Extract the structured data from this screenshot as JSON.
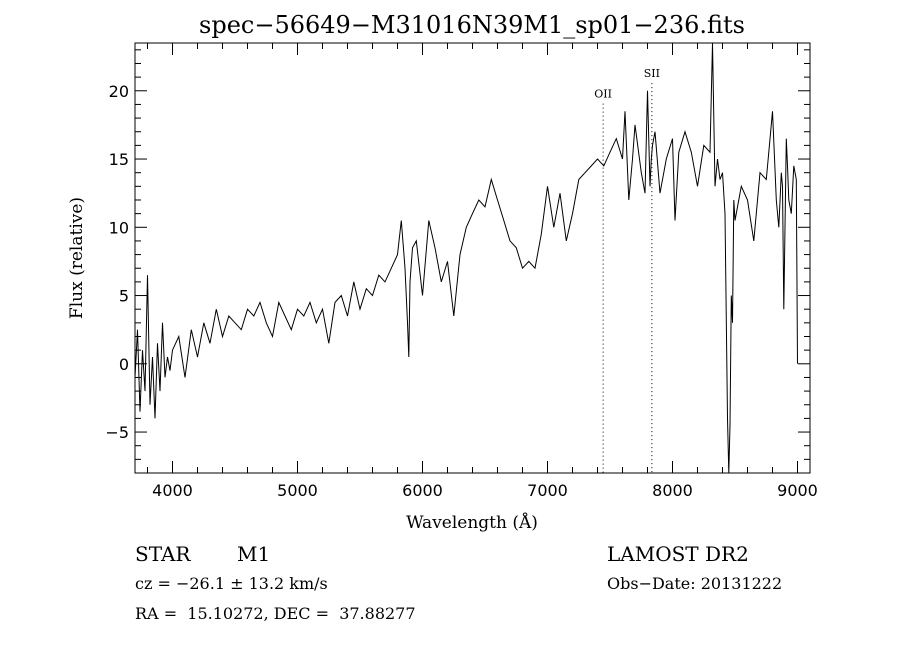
{
  "chart_data": {
    "type": "line",
    "title": "spec−56649−M31016N39M1_sp01−236.fits",
    "xlabel": "Wavelength (Å)",
    "ylabel": "Flux (relative)",
    "xlim": [
      3700,
      9100
    ],
    "ylim": [
      -8,
      23.5
    ],
    "x_ticks": [
      4000,
      5000,
      6000,
      7000,
      8000,
      9000
    ],
    "y_ticks": [
      -5,
      0,
      5,
      10,
      15,
      20
    ],
    "y_tick_labels": [
      "−5",
      "0",
      "5",
      "10",
      "15",
      "20"
    ],
    "grid": false,
    "line_color": "#000000",
    "series": [
      {
        "x": [
          3700,
          3720,
          3740,
          3760,
          3780,
          3800,
          3820,
          3840,
          3860,
          3880,
          3900,
          3920,
          3940,
          3960,
          3980,
          4000,
          4050,
          4100,
          4150,
          4200,
          4250,
          4300,
          4350,
          4400,
          4450,
          4500,
          4550,
          4600,
          4650,
          4700,
          4750,
          4800,
          4850,
          4900,
          4950,
          5000,
          5050,
          5100,
          5150,
          5200,
          5250,
          5300,
          5350,
          5400,
          5450,
          5500,
          5550,
          5600,
          5650,
          5700,
          5750,
          5800,
          5830,
          5860,
          5880,
          5890,
          5900,
          5920,
          5950,
          6000,
          6050,
          6100,
          6150,
          6200,
          6250,
          6300,
          6350,
          6400,
          6450,
          6500,
          6550,
          6600,
          6650,
          6700,
          6750,
          6800,
          6850,
          6900,
          6950,
          7000,
          7050,
          7100,
          7150,
          7200,
          7250,
          7300,
          7350,
          7400,
          7450,
          7500,
          7550,
          7600,
          7620,
          7650,
          7680,
          7700,
          7750,
          7780,
          7800,
          7820,
          7830,
          7840,
          7860,
          7900,
          7950,
          8000,
          8020,
          8050,
          8100,
          8150,
          8200,
          8250,
          8300,
          8320,
          8340,
          8360,
          8380,
          8400,
          8420,
          8440,
          8450,
          8460,
          8470,
          8480,
          8490,
          8500,
          8550,
          8600,
          8650,
          8700,
          8750,
          8800,
          8830,
          8850,
          8870,
          8880,
          8890,
          8900,
          8910,
          8920,
          8930,
          8950,
          8970,
          8990,
          9000
        ],
        "y": [
          -1.0,
          2.5,
          -3.5,
          1.0,
          -2.0,
          6.5,
          -3.0,
          0.5,
          -4.0,
          1.5,
          -2.0,
          3.0,
          -1.0,
          0.5,
          -0.5,
          1.0,
          2.0,
          -1.0,
          2.5,
          0.5,
          3.0,
          1.5,
          4.0,
          2.0,
          3.5,
          3.0,
          2.5,
          4.0,
          3.5,
          4.5,
          3.0,
          2.0,
          4.5,
          3.5,
          2.5,
          4.0,
          3.5,
          4.5,
          3.0,
          4.0,
          1.5,
          4.5,
          5.0,
          3.5,
          6.0,
          4.0,
          5.5,
          5.0,
          6.5,
          6.0,
          7.0,
          8.0,
          10.5,
          7.0,
          3.0,
          0.5,
          6.0,
          8.5,
          9.0,
          5.0,
          10.5,
          8.5,
          6.0,
          7.5,
          3.5,
          8.0,
          10.0,
          11.0,
          12.0,
          11.5,
          13.5,
          12.0,
          10.5,
          9.0,
          8.5,
          7.0,
          7.5,
          7.0,
          9.5,
          13.0,
          10.0,
          12.5,
          9.0,
          11.0,
          13.5,
          14.0,
          14.5,
          15.0,
          14.5,
          15.5,
          16.5,
          15.0,
          18.5,
          12.0,
          15.0,
          17.5,
          14.0,
          12.5,
          20.0,
          13.0,
          15.0,
          16.0,
          17.0,
          12.5,
          15.0,
          16.5,
          10.5,
          15.5,
          17.0,
          15.5,
          13.0,
          16.0,
          15.5,
          23.5,
          13.0,
          15.0,
          13.5,
          14.0,
          11.0,
          -4.0,
          -8.0,
          -4.5,
          5.0,
          3.0,
          12.0,
          10.5,
          13.0,
          12.0,
          9.0,
          14.0,
          13.5,
          18.5,
          12.0,
          10.0,
          14.0,
          13.0,
          4.0,
          10.0,
          16.5,
          14.5,
          12.0,
          11.0,
          14.5,
          13.5,
          0.0
        ]
      }
    ],
    "emission_lines": [
      {
        "label": "OII",
        "x": 7445,
        "label_y": 19.5
      },
      {
        "label": "SII",
        "x": 7835,
        "label_y": 21.0
      }
    ]
  },
  "info": {
    "object": "STAR",
    "subclass": "M1",
    "survey": "LAMOST DR2",
    "cz": "cz = −26.1 ± 13.2 km/s",
    "obs_date": "Obs−Date: 20131222",
    "coords": "RA =  15.10272, DEC =  37.88277"
  }
}
